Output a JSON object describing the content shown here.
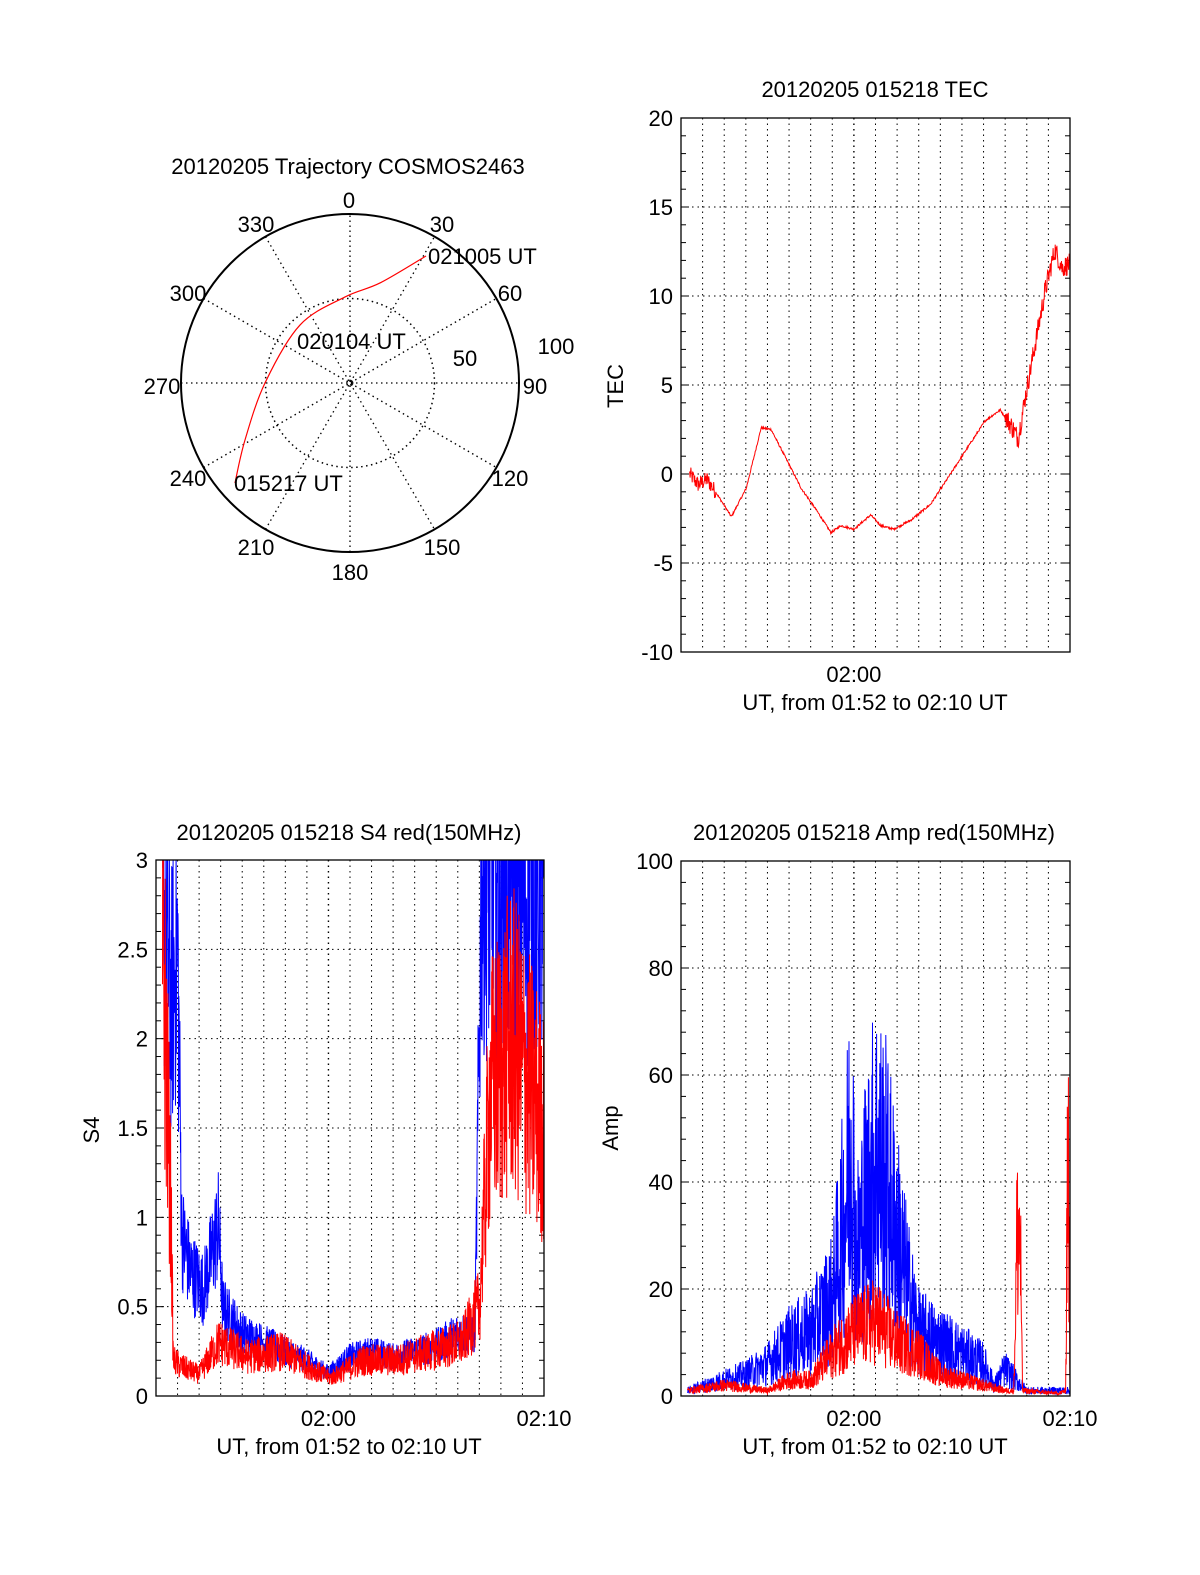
{
  "colors": {
    "red": "#ff0000",
    "blue": "#0000ff",
    "axis": "#000000"
  },
  "chart_data": [
    {
      "type": "polar",
      "title": "20120205 Trajectory COSMOS2463",
      "angle_labels": [
        "0",
        "30",
        "60",
        "90",
        "120",
        "150",
        "180",
        "210",
        "240",
        "270",
        "300",
        "330"
      ],
      "radial_labels": [
        "50",
        "100"
      ],
      "rlim": [
        0,
        100
      ],
      "annotations": [
        "015217 UT",
        "020104 UT",
        "021005 UT"
      ],
      "trajectory": [
        {
          "az": 229,
          "r": 90.2
        },
        {
          "az": 241.5,
          "r": 70.7
        },
        {
          "az": 270,
          "r": 50.3
        },
        {
          "az": 319.2,
          "r": 45.3
        },
        {
          "az": 356.7,
          "r": 51
        },
        {
          "az": 16.7,
          "r": 61.8
        },
        {
          "az": 30.9,
          "r": 87.6
        }
      ]
    },
    {
      "type": "line",
      "title": "20120205 015218 TEC",
      "ylabel": "TEC",
      "xlabel": "UT, from 01:52 to 02:10 UT",
      "x_units": "minutes since 01:52",
      "xlim": [
        0,
        18
      ],
      "ylim": [
        -10,
        20
      ],
      "y_ticks": [
        "-10",
        "-5",
        "0",
        "5",
        "10",
        "15",
        "20"
      ],
      "y_major": 5,
      "y_minor": 1,
      "x_ticks": [
        {
          "at": 8,
          "label": "02:00"
        }
      ],
      "series": [
        {
          "name": "TEC",
          "color": "red",
          "noise": 0.15,
          "points": [
            [
              0.4,
              0
            ],
            [
              0.8,
              -0.6
            ],
            [
              1.2,
              -0.3
            ],
            [
              1.6,
              -1
            ],
            [
              2.33,
              -2.4
            ],
            [
              3.02,
              -0.8
            ],
            [
              3.71,
              2.6
            ],
            [
              4.17,
              2.5
            ],
            [
              5.1,
              0.3
            ],
            [
              5.56,
              -0.8
            ],
            [
              6.25,
              -2
            ],
            [
              6.94,
              -3.3
            ],
            [
              7.4,
              -2.9
            ],
            [
              8,
              -3.1
            ],
            [
              8.78,
              -2.3
            ],
            [
              9.24,
              -2.9
            ],
            [
              9.84,
              -3.1
            ],
            [
              10.63,
              -2.6
            ],
            [
              11.55,
              -1.7
            ],
            [
              12.47,
              0
            ],
            [
              13.16,
              1.3
            ],
            [
              14.08,
              3
            ],
            [
              14.77,
              3.6
            ],
            [
              15.24,
              2.8
            ],
            [
              15.6,
              2.0
            ],
            [
              15.93,
              4.3
            ],
            [
              16.39,
              7.3
            ],
            [
              16.85,
              10.3
            ],
            [
              17.3,
              12.6
            ],
            [
              17.63,
              11.6
            ],
            [
              18,
              11.8
            ]
          ]
        }
      ]
    },
    {
      "type": "line",
      "title": "20120205 015218 S4 red(150MHz)",
      "ylabel": "S4",
      "xlabel": "UT, from 01:52 to 02:10 UT",
      "x_units": "minutes since 01:52",
      "xlim": [
        0,
        18
      ],
      "ylim": [
        0,
        3
      ],
      "y_ticks": [
        "0",
        "0.5",
        "1",
        "1.5",
        "2",
        "2.5",
        "3"
      ],
      "y_major": 0.5,
      "y_minor": 0.1,
      "x_ticks": [
        {
          "at": 8,
          "label": "02:00"
        },
        {
          "at": 18,
          "label": "02:10"
        }
      ],
      "series": [
        {
          "name": "blue",
          "color": "blue",
          "noise": 0.35,
          "points": [
            [
              0.3,
              2.8
            ],
            [
              0.7,
              2.2
            ],
            [
              1.0,
              2.5
            ],
            [
              1.2,
              0.9
            ],
            [
              1.6,
              0.7
            ],
            [
              2.2,
              0.6
            ],
            [
              2.9,
              0.95
            ],
            [
              3.1,
              0.5
            ],
            [
              4.0,
              0.35
            ],
            [
              5.0,
              0.3
            ],
            [
              6.0,
              0.25
            ],
            [
              7.0,
              0.2
            ],
            [
              8.0,
              0.13
            ],
            [
              9.0,
              0.22
            ],
            [
              10.0,
              0.25
            ],
            [
              11.0,
              0.22
            ],
            [
              12.0,
              0.25
            ],
            [
              13.0,
              0.28
            ],
            [
              14.0,
              0.35
            ],
            [
              14.8,
              0.35
            ],
            [
              15.1,
              2.9
            ],
            [
              16.5,
              2.8
            ],
            [
              18,
              2.7
            ]
          ]
        },
        {
          "name": "red",
          "color": "red",
          "noise": 0.45,
          "points": [
            [
              0.3,
              2.6
            ],
            [
              0.7,
              1.0
            ],
            [
              0.8,
              0.2
            ],
            [
              1.1,
              0.17
            ],
            [
              2.0,
              0.12
            ],
            [
              2.9,
              0.3
            ],
            [
              4.25,
              0.22
            ],
            [
              5.8,
              0.25
            ],
            [
              7.3,
              0.15
            ],
            [
              8.1,
              0.1
            ],
            [
              9.6,
              0.2
            ],
            [
              11.2,
              0.2
            ],
            [
              12.7,
              0.25
            ],
            [
              14.2,
              0.3
            ],
            [
              15.0,
              0.5
            ],
            [
              15.5,
              1.7
            ],
            [
              16.5,
              2.0
            ],
            [
              18,
              1.5
            ]
          ]
        }
      ]
    },
    {
      "type": "line",
      "title": "20120205 015218 Amp red(150MHz)",
      "ylabel": "Amp",
      "xlabel": "UT, from 01:52 to 02:10 UT",
      "x_units": "minutes since 01:52",
      "xlim": [
        0,
        18
      ],
      "ylim": [
        0,
        100
      ],
      "y_ticks": [
        "0",
        "20",
        "40",
        "60",
        "80",
        "100"
      ],
      "y_major": 20,
      "y_minor": 4,
      "x_ticks": [
        {
          "at": 8,
          "label": "02:00"
        },
        {
          "at": 18,
          "label": "02:10"
        }
      ],
      "series": [
        {
          "name": "blue",
          "color": "blue",
          "noise": 0.7,
          "points": [
            [
              0.3,
              1
            ],
            [
              2,
              3
            ],
            [
              3,
              4
            ],
            [
              4,
              6
            ],
            [
              5,
              10
            ],
            [
              6,
              12
            ],
            [
              7,
              18
            ],
            [
              7.6,
              35
            ],
            [
              7.9,
              50
            ],
            [
              8.1,
              25
            ],
            [
              8.5,
              35
            ],
            [
              9,
              45
            ],
            [
              9.5,
              40
            ],
            [
              10,
              30
            ],
            [
              10.5,
              20
            ],
            [
              11,
              12
            ],
            [
              12,
              10
            ],
            [
              13,
              8
            ],
            [
              14,
              6
            ],
            [
              14.5,
              2
            ],
            [
              15,
              5
            ],
            [
              15.5,
              3
            ],
            [
              16,
              1
            ],
            [
              18,
              1
            ]
          ]
        },
        {
          "name": "red",
          "color": "red",
          "noise": 0.6,
          "points": [
            [
              0.3,
              1
            ],
            [
              2,
              2
            ],
            [
              4,
              1
            ],
            [
              5,
              3
            ],
            [
              6,
              3
            ],
            [
              7,
              8
            ],
            [
              7.5,
              10
            ],
            [
              8,
              12
            ],
            [
              9,
              14
            ],
            [
              10,
              10
            ],
            [
              11,
              8
            ],
            [
              12,
              4
            ],
            [
              13,
              3
            ],
            [
              14,
              2
            ],
            [
              15,
              1
            ],
            [
              15.4,
              1
            ],
            [
              15.55,
              30
            ],
            [
              15.7,
              30
            ],
            [
              15.8,
              1
            ],
            [
              17.5,
              0.5
            ],
            [
              17.8,
              1
            ],
            [
              17.9,
              55
            ],
            [
              18,
              1
            ]
          ]
        }
      ]
    }
  ]
}
